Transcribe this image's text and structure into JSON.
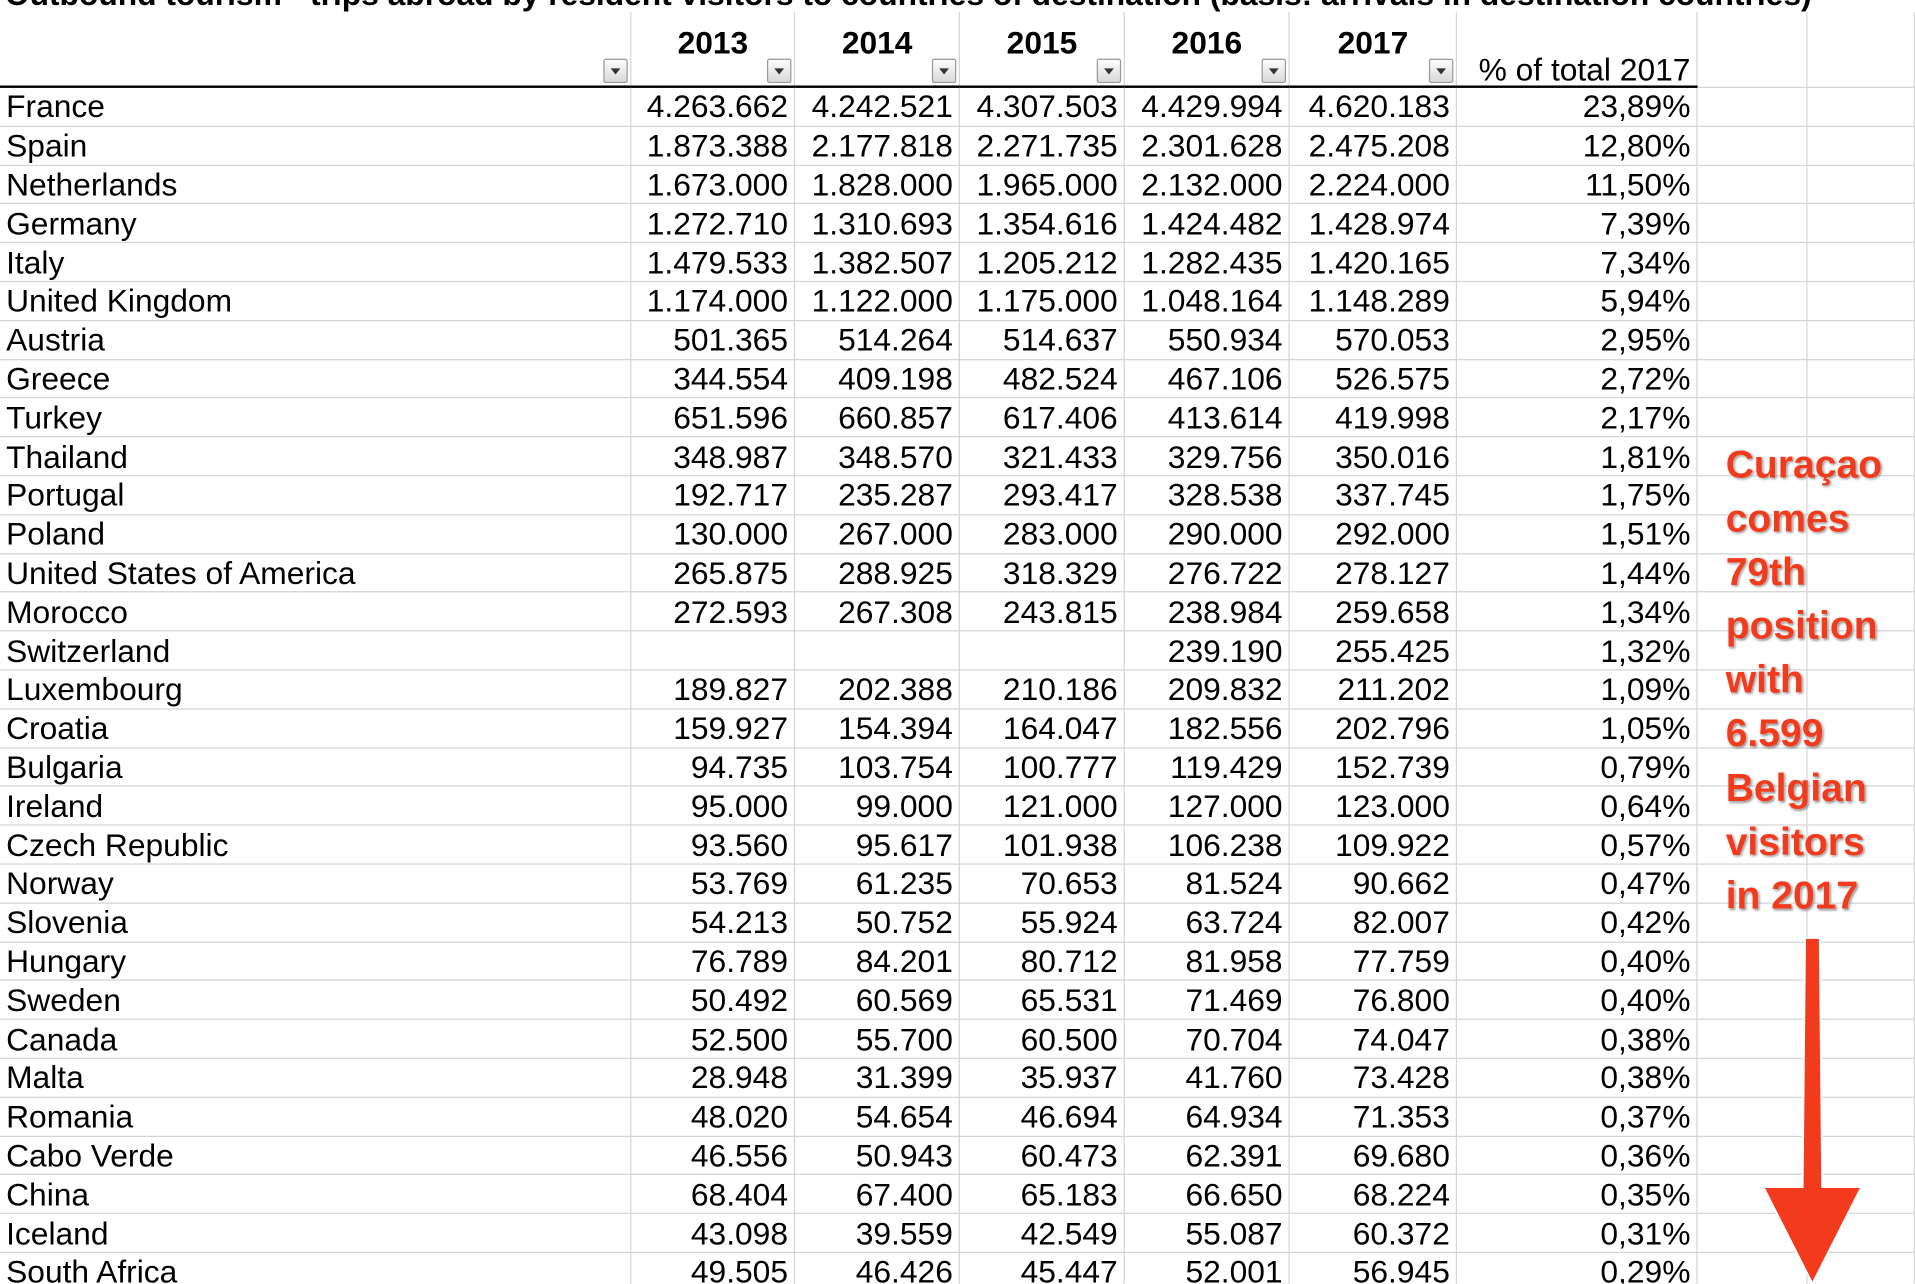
{
  "title": "Outbound tourism - trips abroad by resident visitors to countries of destination (basis: arrivals in destination countries)",
  "table": {
    "header": [
      "",
      "2013",
      "2014",
      "2015",
      "2016",
      "2017",
      "% of total 2017"
    ],
    "rows": [
      [
        "France",
        "4.263.662",
        "4.242.521",
        "4.307.503",
        "4.429.994",
        "4.620.183",
        "23,89%"
      ],
      [
        "Spain",
        "1.873.388",
        "2.177.818",
        "2.271.735",
        "2.301.628",
        "2.475.208",
        "12,80%"
      ],
      [
        "Netherlands",
        "1.673.000",
        "1.828.000",
        "1.965.000",
        "2.132.000",
        "2.224.000",
        "11,50%"
      ],
      [
        "Germany",
        "1.272.710",
        "1.310.693",
        "1.354.616",
        "1.424.482",
        "1.428.974",
        "7,39%"
      ],
      [
        "Italy",
        "1.479.533",
        "1.382.507",
        "1.205.212",
        "1.282.435",
        "1.420.165",
        "7,34%"
      ],
      [
        "United Kingdom",
        "1.174.000",
        "1.122.000",
        "1.175.000",
        "1.048.164",
        "1.148.289",
        "5,94%"
      ],
      [
        "Austria",
        "501.365",
        "514.264",
        "514.637",
        "550.934",
        "570.053",
        "2,95%"
      ],
      [
        "Greece",
        "344.554",
        "409.198",
        "482.524",
        "467.106",
        "526.575",
        "2,72%"
      ],
      [
        "Turkey",
        "651.596",
        "660.857",
        "617.406",
        "413.614",
        "419.998",
        "2,17%"
      ],
      [
        "Thailand",
        "348.987",
        "348.570",
        "321.433",
        "329.756",
        "350.016",
        "1,81%"
      ],
      [
        "Portugal",
        "192.717",
        "235.287",
        "293.417",
        "328.538",
        "337.745",
        "1,75%"
      ],
      [
        "Poland",
        "130.000",
        "267.000",
        "283.000",
        "290.000",
        "292.000",
        "1,51%"
      ],
      [
        "United States of America",
        "265.875",
        "288.925",
        "318.329",
        "276.722",
        "278.127",
        "1,44%"
      ],
      [
        "Morocco",
        "272.593",
        "267.308",
        "243.815",
        "238.984",
        "259.658",
        "1,34%"
      ],
      [
        "Switzerland",
        null,
        null,
        null,
        "239.190",
        "255.425",
        "1,32%"
      ],
      [
        "Luxembourg",
        "189.827",
        "202.388",
        "210.186",
        "209.832",
        "211.202",
        "1,09%"
      ],
      [
        "Croatia",
        "159.927",
        "154.394",
        "164.047",
        "182.556",
        "202.796",
        "1,05%"
      ],
      [
        "Bulgaria",
        "94.735",
        "103.754",
        "100.777",
        "119.429",
        "152.739",
        "0,79%"
      ],
      [
        "Ireland",
        "95.000",
        "99.000",
        "121.000",
        "127.000",
        "123.000",
        "0,64%"
      ],
      [
        "Czech Republic",
        "93.560",
        "95.617",
        "101.938",
        "106.238",
        "109.922",
        "0,57%"
      ],
      [
        "Norway",
        "53.769",
        "61.235",
        "70.653",
        "81.524",
        "90.662",
        "0,47%"
      ],
      [
        "Slovenia",
        "54.213",
        "50.752",
        "55.924",
        "63.724",
        "82.007",
        "0,42%"
      ],
      [
        "Hungary",
        "76.789",
        "84.201",
        "80.712",
        "81.958",
        "77.759",
        "0,40%"
      ],
      [
        "Sweden",
        "50.492",
        "60.569",
        "65.531",
        "71.469",
        "76.800",
        "0,40%"
      ],
      [
        "Canada",
        "52.500",
        "55.700",
        "60.500",
        "70.704",
        "74.047",
        "0,38%"
      ],
      [
        "Malta",
        "28.948",
        "31.399",
        "35.937",
        "41.760",
        "73.428",
        "0,38%"
      ],
      [
        "Romania",
        "48.020",
        "54.654",
        "46.694",
        "64.934",
        "71.353",
        "0,37%"
      ],
      [
        "Cabo Verde",
        "46.556",
        "50.943",
        "60.473",
        "62.391",
        "69.680",
        "0,36%"
      ],
      [
        "China",
        "68.404",
        "67.400",
        "65.183",
        "66.650",
        "68.224",
        "0,35%"
      ],
      [
        "Iceland",
        "43.098",
        "39.559",
        "42.549",
        "55.087",
        "60.372",
        "0,31%"
      ],
      [
        "South Africa",
        "49.505",
        "46.426",
        "45.447",
        "52.001",
        "56.945",
        "0,29%"
      ]
    ]
  },
  "annotation": [
    "Curaçao",
    "comes",
    "79th",
    "position",
    "with",
    "6.599",
    "Belgian",
    "visitors",
    "in 2017"
  ]
}
